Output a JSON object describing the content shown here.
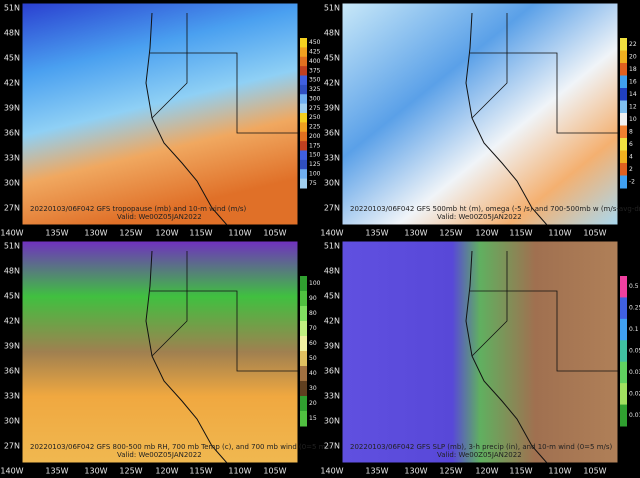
{
  "lat_labels": [
    "51N",
    "48N",
    "45N",
    "42N",
    "39N",
    "36N",
    "33N",
    "30N",
    "27N"
  ],
  "lon_labels": [
    "140W",
    "135W",
    "130W",
    "125W",
    "120W",
    "115W",
    "110W",
    "105W"
  ],
  "panels": [
    {
      "caption": "20220103/06F042 GFS tropopause (mb) and 10-m wind (m/s)",
      "valid": "Valid: We00Z05JAN2022",
      "colorbar": [
        "450",
        "425",
        "400",
        "375",
        "350",
        "325",
        "300",
        "275",
        "250",
        "225",
        "200",
        "175",
        "150",
        "125",
        "100",
        "75"
      ]
    },
    {
      "caption": "20220103/06F042 GFS 500mb ht (m), omega (-5 /s) and 700-500mb w (m/s-avg-dn)",
      "valid": "Valid: We00Z05JAN2022",
      "colorbar": [
        "22",
        "20",
        "18",
        "16",
        "14",
        "12",
        "10",
        "8",
        "6",
        "4",
        "2",
        "-2"
      ]
    },
    {
      "caption": "20220103/06F042 GFS 800-500 mb RH, 700 mb Temp (c), and 700 mb wind (0=5 m/s)",
      "valid": "Valid: We00Z05JAN2022",
      "colorbar": [
        "100",
        "90",
        "80",
        "70",
        "60",
        "50",
        "40",
        "30",
        "20",
        "15"
      ]
    },
    {
      "caption": "20220103/06F042 GFS SLP (mb), 3-h precip (in), and 10-m wind (0=5 m/s)",
      "valid": "Valid: We00Z05JAN2022",
      "colorbar": [
        "0.5",
        "0.25",
        "0.1",
        "0.05",
        "0.03",
        "0.02",
        "0.01"
      ]
    }
  ]
}
